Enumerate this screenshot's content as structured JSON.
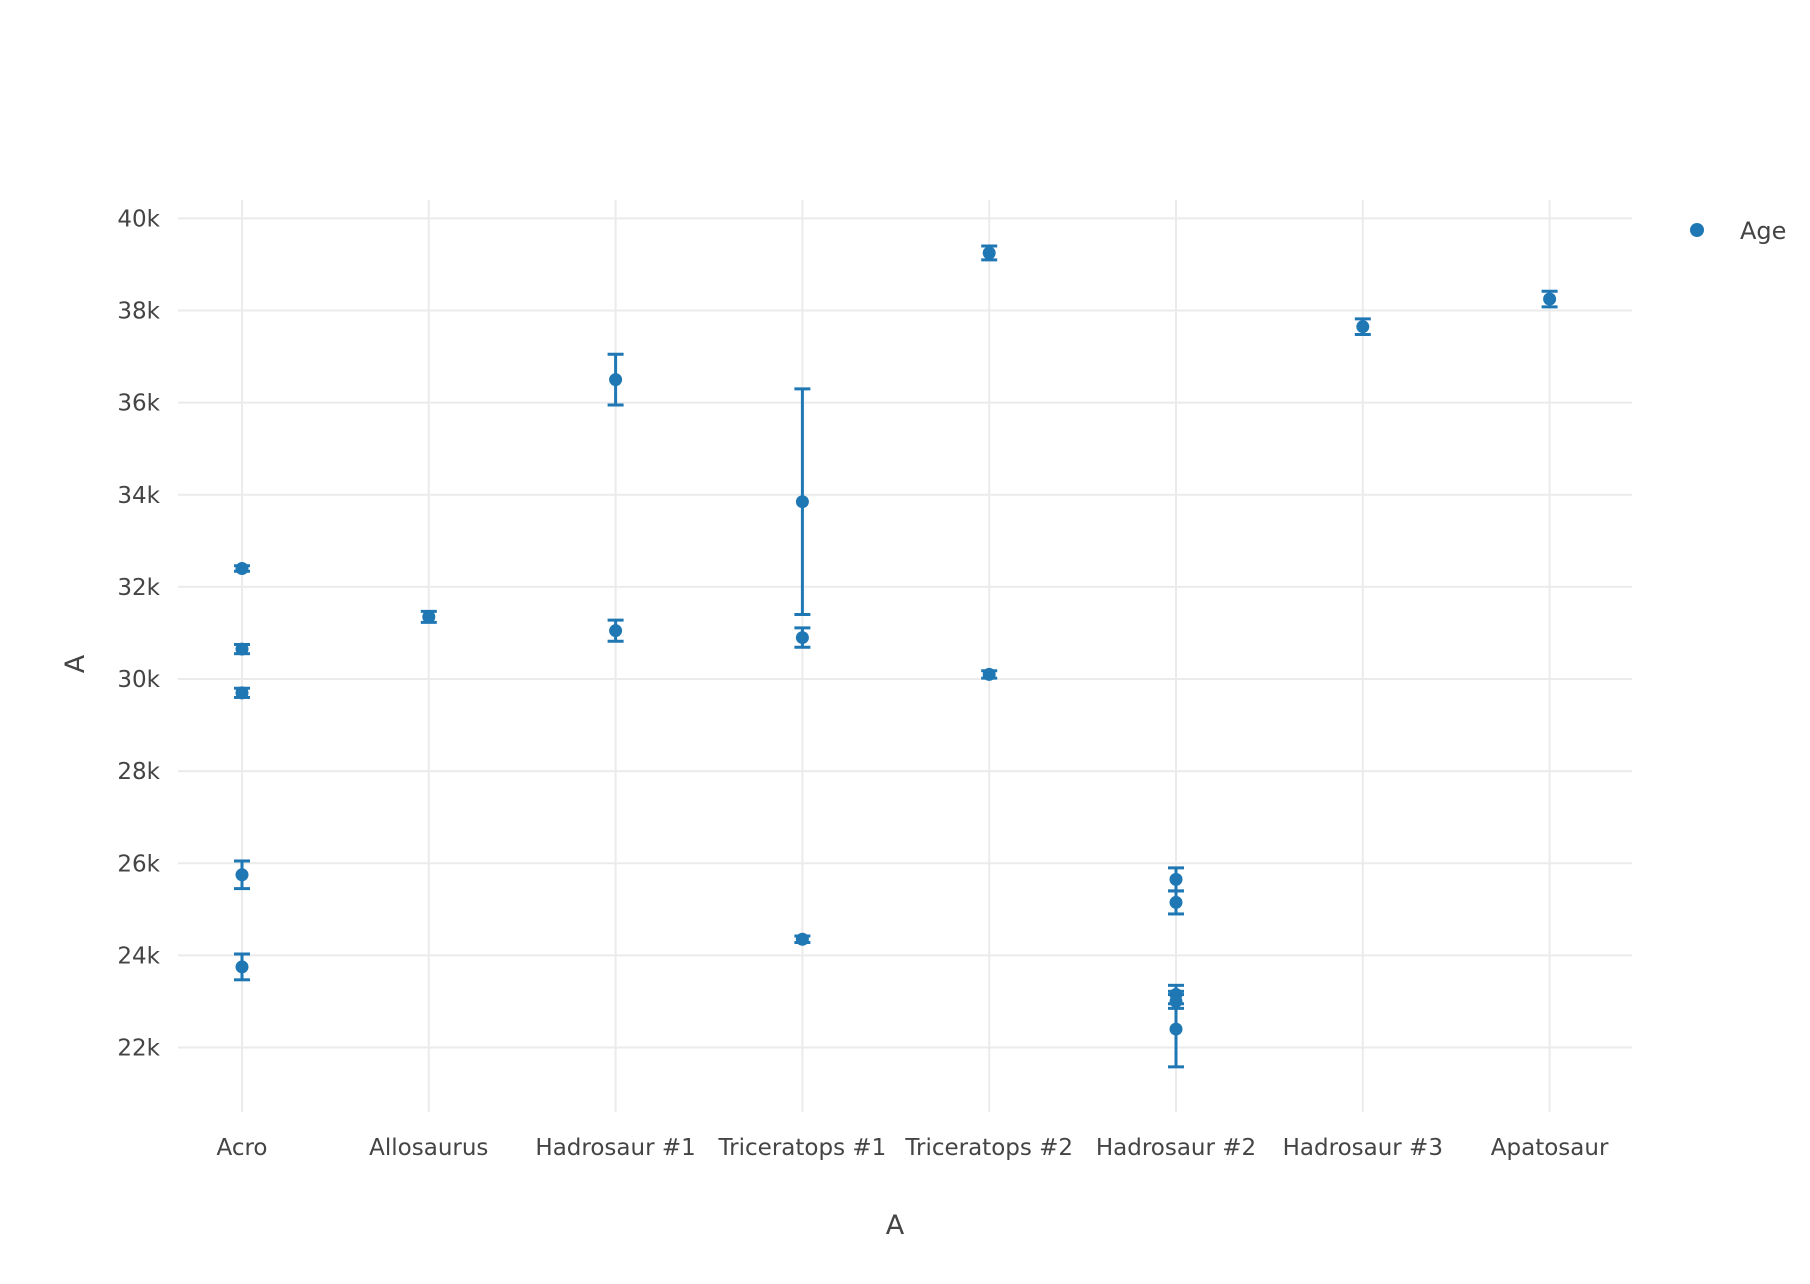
{
  "chart_data": {
    "type": "scatter",
    "title": "",
    "xlabel": "A",
    "ylabel": "A",
    "categories": [
      "Acro",
      "Allosaurus",
      "Hadrosaur #1",
      "Triceratops #1",
      "Triceratops #2",
      "Hadrosaur #2",
      "Hadrosaur #3",
      "Apatosaur"
    ],
    "ylim": [
      20600,
      40400
    ],
    "yticks": [
      22000,
      24000,
      26000,
      28000,
      30000,
      32000,
      34000,
      36000,
      38000,
      40000
    ],
    "ytick_labels": [
      "22k",
      "24k",
      "26k",
      "28k",
      "30k",
      "32k",
      "34k",
      "36k",
      "38k",
      "40k"
    ],
    "grid": true,
    "legend": {
      "position": "top-right",
      "entries": [
        "Age"
      ]
    },
    "series": [
      {
        "name": "Age",
        "color": "#1f77b4",
        "points": [
          {
            "x": "Acro",
            "y": 32400,
            "err": 60
          },
          {
            "x": "Acro",
            "y": 30650,
            "err": 100
          },
          {
            "x": "Acro",
            "y": 29700,
            "err": 100
          },
          {
            "x": "Acro",
            "y": 25750,
            "err": 300
          },
          {
            "x": "Acro",
            "y": 23750,
            "err": 280
          },
          {
            "x": "Allosaurus",
            "y": 31350,
            "err": 120
          },
          {
            "x": "Hadrosaur #1",
            "y": 36500,
            "err": 550
          },
          {
            "x": "Hadrosaur #1",
            "y": 31050,
            "err": 230
          },
          {
            "x": "Triceratops #1",
            "y": 33850,
            "err": 2450
          },
          {
            "x": "Triceratops #1",
            "y": 30900,
            "err": 210
          },
          {
            "x": "Triceratops #1",
            "y": 24350,
            "err": 70
          },
          {
            "x": "Triceratops #2",
            "y": 39250,
            "err": 150
          },
          {
            "x": "Triceratops #2",
            "y": 30100,
            "err": 80
          },
          {
            "x": "Hadrosaur #2",
            "y": 25650,
            "err": 250
          },
          {
            "x": "Hadrosaur #2",
            "y": 25150,
            "err": 250
          },
          {
            "x": "Hadrosaur #2",
            "y": 23150,
            "err": 200
          },
          {
            "x": "Hadrosaur #2",
            "y": 23000,
            "err": 150
          },
          {
            "x": "Hadrosaur #2",
            "y": 22400,
            "err": 820
          },
          {
            "x": "Hadrosaur #3",
            "y": 37650,
            "err": 170
          },
          {
            "x": "Apatosaur",
            "y": 38250,
            "err": 170
          }
        ]
      }
    ]
  }
}
